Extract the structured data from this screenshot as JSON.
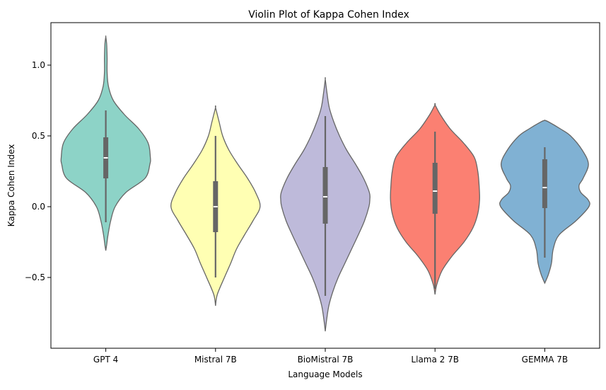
{
  "chart_data": {
    "type": "violin",
    "title": "Violin Plot of Kappa Cohen Index",
    "xlabel": "Language Models",
    "ylabel": "Kappa Cohen Index",
    "ylim": [
      -1.0,
      1.3
    ],
    "yticks": [
      -0.5,
      0.0,
      0.5,
      1.0
    ],
    "ytick_labels": [
      "−0.5",
      "0.0",
      "0.5",
      "1.0"
    ],
    "grid": false,
    "categories": [
      "GPT 4",
      "Mistral 7B",
      "BioMistral 7B",
      "Llama 2 7B",
      "GEMMA 7B"
    ],
    "series": [
      {
        "category": "GPT 4",
        "color": "#8dd3c7",
        "q1": 0.2,
        "median": 0.345,
        "q3": 0.49,
        "whisker_low": -0.11,
        "whisker_high": 0.68,
        "profile": [
          [
            -0.31,
            0.0
          ],
          [
            -0.27,
            0.02
          ],
          [
            -0.2,
            0.05
          ],
          [
            -0.1,
            0.11
          ],
          [
            0.0,
            0.21
          ],
          [
            0.1,
            0.45
          ],
          [
            0.2,
            0.88
          ],
          [
            0.3,
            0.99
          ],
          [
            0.35,
            1.0
          ],
          [
            0.45,
            0.95
          ],
          [
            0.55,
            0.74
          ],
          [
            0.65,
            0.42
          ],
          [
            0.75,
            0.17
          ],
          [
            0.85,
            0.06
          ],
          [
            0.95,
            0.03
          ],
          [
            1.05,
            0.03
          ],
          [
            1.15,
            0.02
          ],
          [
            1.2,
            0.0
          ]
        ]
      },
      {
        "category": "Mistral 7B",
        "color": "#ffffb3",
        "q1": -0.18,
        "median": 0.0,
        "q3": 0.18,
        "whisker_low": -0.5,
        "whisker_high": 0.5,
        "profile": [
          [
            -0.7,
            0.0
          ],
          [
            -0.62,
            0.04
          ],
          [
            -0.5,
            0.2
          ],
          [
            -0.4,
            0.34
          ],
          [
            -0.3,
            0.47
          ],
          [
            -0.2,
            0.65
          ],
          [
            -0.1,
            0.84
          ],
          [
            0.0,
            1.0
          ],
          [
            0.1,
            0.9
          ],
          [
            0.2,
            0.72
          ],
          [
            0.3,
            0.5
          ],
          [
            0.4,
            0.3
          ],
          [
            0.5,
            0.16
          ],
          [
            0.6,
            0.08
          ],
          [
            0.7,
            0.0
          ]
        ]
      },
      {
        "category": "BioMistral 7B",
        "color": "#bebada",
        "q1": -0.12,
        "median": 0.07,
        "q3": 0.28,
        "whisker_low": -0.63,
        "whisker_high": 0.64,
        "profile": [
          [
            -0.88,
            0.0
          ],
          [
            -0.8,
            0.03
          ],
          [
            -0.7,
            0.08
          ],
          [
            -0.6,
            0.17
          ],
          [
            -0.5,
            0.29
          ],
          [
            -0.4,
            0.44
          ],
          [
            -0.3,
            0.59
          ],
          [
            -0.2,
            0.74
          ],
          [
            -0.1,
            0.88
          ],
          [
            0.0,
            0.98
          ],
          [
            0.05,
            1.0
          ],
          [
            0.1,
            0.99
          ],
          [
            0.2,
            0.86
          ],
          [
            0.3,
            0.68
          ],
          [
            0.4,
            0.48
          ],
          [
            0.5,
            0.32
          ],
          [
            0.6,
            0.19
          ],
          [
            0.7,
            0.09
          ],
          [
            0.8,
            0.04
          ],
          [
            0.9,
            0.0
          ]
        ]
      },
      {
        "category": "Llama 2 7B",
        "color": "#fb8072",
        "q1": -0.05,
        "median": 0.11,
        "q3": 0.31,
        "whisker_low": -0.58,
        "whisker_high": 0.53,
        "profile": [
          [
            -0.62,
            0.0
          ],
          [
            -0.55,
            0.04
          ],
          [
            -0.45,
            0.16
          ],
          [
            -0.35,
            0.38
          ],
          [
            -0.25,
            0.65
          ],
          [
            -0.15,
            0.85
          ],
          [
            -0.05,
            0.96
          ],
          [
            0.05,
            1.0
          ],
          [
            0.15,
            0.99
          ],
          [
            0.25,
            0.96
          ],
          [
            0.35,
            0.88
          ],
          [
            0.45,
            0.64
          ],
          [
            0.55,
            0.34
          ],
          [
            0.65,
            0.12
          ],
          [
            0.72,
            0.0
          ]
        ]
      },
      {
        "category": "GEMMA 7B",
        "color": "#80b1d3",
        "q1": -0.01,
        "median": 0.135,
        "q3": 0.335,
        "whisker_low": -0.36,
        "whisker_high": 0.42,
        "profile": [
          [
            -0.54,
            0.0
          ],
          [
            -0.48,
            0.08
          ],
          [
            -0.4,
            0.15
          ],
          [
            -0.3,
            0.19
          ],
          [
            -0.2,
            0.32
          ],
          [
            -0.1,
            0.7
          ],
          [
            0.0,
            0.99
          ],
          [
            0.05,
            0.97
          ],
          [
            0.1,
            0.81
          ],
          [
            0.15,
            0.77
          ],
          [
            0.2,
            0.86
          ],
          [
            0.3,
            0.98
          ],
          [
            0.4,
            0.84
          ],
          [
            0.5,
            0.58
          ],
          [
            0.55,
            0.35
          ],
          [
            0.6,
            0.08
          ],
          [
            0.61,
            0.0
          ]
        ]
      }
    ]
  }
}
